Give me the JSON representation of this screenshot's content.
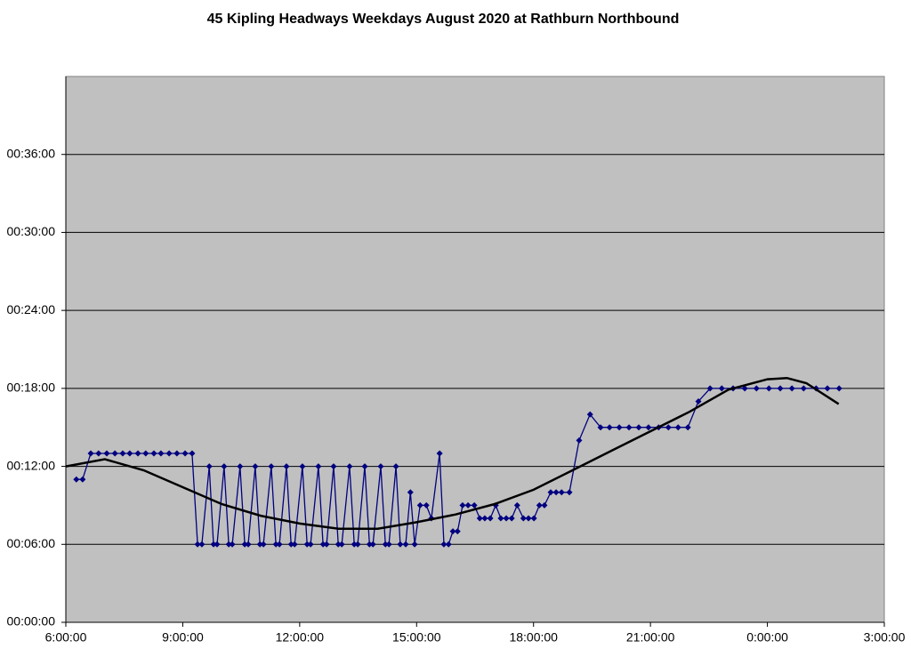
{
  "chart_data": {
    "type": "line",
    "title": "45 Kipling Headways Weekdays August 2020 at Rathburn Northbound",
    "xlim": [
      6,
      27
    ],
    "xticks": [
      {
        "value": 6,
        "label": "6:00:00"
      },
      {
        "value": 9,
        "label": "9:00:00"
      },
      {
        "value": 12,
        "label": "12:00:00"
      },
      {
        "value": 15,
        "label": "15:00:00"
      },
      {
        "value": 18,
        "label": "18:00:00"
      },
      {
        "value": 21,
        "label": "21:00:00"
      },
      {
        "value": 24,
        "label": "0:00:00"
      },
      {
        "value": 27,
        "label": "3:00:00"
      }
    ],
    "ylim": [
      0,
      42
    ],
    "yticks": [
      {
        "value": 0,
        "label": "00:00:00"
      },
      {
        "value": 6,
        "label": "00:06:00"
      },
      {
        "value": 12,
        "label": "00:12:00"
      },
      {
        "value": 18,
        "label": "00:18:00"
      },
      {
        "value": 24,
        "label": "00:24:00"
      },
      {
        "value": 30,
        "label": "00:30:00"
      },
      {
        "value": 36,
        "label": "00:36:00"
      }
    ],
    "grid": true,
    "plot_background": "#c0c0c0",
    "series": [
      {
        "color": "#000080",
        "x": [
          6.27,
          6.43,
          6.64,
          6.84,
          7.05,
          7.26,
          7.46,
          7.64,
          7.85,
          8.05,
          8.26,
          8.44,
          8.65,
          8.85,
          9.06,
          9.24,
          9.38,
          9.49,
          9.68,
          9.79,
          9.88,
          10.06,
          10.18,
          10.27,
          10.47,
          10.59,
          10.68,
          10.86,
          10.98,
          11.07,
          11.27,
          11.39,
          11.48,
          11.66,
          11.78,
          11.87,
          12.07,
          12.19,
          12.28,
          12.48,
          12.6,
          12.69,
          12.87,
          12.99,
          13.08,
          13.28,
          13.4,
          13.49,
          13.67,
          13.79,
          13.88,
          14.08,
          14.2,
          14.29,
          14.47,
          14.58,
          14.72,
          14.84,
          14.95,
          15.09,
          15.25,
          15.38,
          15.59,
          15.7,
          15.82,
          15.93,
          16.05,
          16.18,
          16.32,
          16.48,
          16.62,
          16.75,
          16.89,
          17.03,
          17.16,
          17.3,
          17.44,
          17.58,
          17.74,
          17.87,
          18.01,
          18.15,
          18.28,
          18.44,
          18.58,
          18.72,
          18.92,
          19.17,
          19.45,
          19.72,
          19.95,
          20.2,
          20.45,
          20.7,
          20.95,
          21.21,
          21.46,
          21.71,
          21.96,
          22.23,
          22.53,
          22.83,
          23.12,
          23.42,
          23.72,
          24.04,
          24.33,
          24.63,
          24.93,
          25.25,
          25.54,
          25.84
        ],
        "values": [
          11,
          11,
          13,
          13,
          13,
          13,
          13,
          13,
          13,
          13,
          13,
          13,
          13,
          13,
          13,
          13,
          6,
          6,
          12,
          6,
          6,
          12,
          6,
          6,
          12,
          6,
          6,
          12,
          6,
          6,
          12,
          6,
          6,
          12,
          6,
          6,
          12,
          6,
          6,
          12,
          6,
          6,
          12,
          6,
          6,
          12,
          6,
          6,
          12,
          6,
          6,
          12,
          6,
          6,
          12,
          6,
          6,
          10,
          6,
          9,
          9,
          8,
          13,
          6,
          6,
          7,
          7,
          9,
          9,
          9,
          8,
          8,
          8,
          9,
          8,
          8,
          8,
          9,
          8,
          8,
          8,
          9,
          9,
          10,
          10,
          10,
          10,
          14,
          16,
          15,
          15,
          15,
          15,
          15,
          15,
          15,
          15,
          15,
          15,
          17,
          18,
          18,
          18,
          18,
          18,
          18,
          18,
          18,
          18,
          18,
          18,
          18
        ]
      }
    ],
    "trendline": {
      "color": "#000000",
      "x": [
        6,
        7,
        8,
        9,
        10,
        11,
        12,
        13,
        14,
        15,
        16,
        17,
        18,
        19,
        20,
        21,
        22,
        23,
        24,
        24.5,
        25,
        25.83
      ],
      "values": [
        12.0,
        12.55,
        11.7,
        10.4,
        9.1,
        8.2,
        7.6,
        7.2,
        7.2,
        7.7,
        8.3,
        9.1,
        10.2,
        11.7,
        13.2,
        14.7,
        16.2,
        17.9,
        18.7,
        18.8,
        18.4,
        16.8
      ]
    }
  }
}
